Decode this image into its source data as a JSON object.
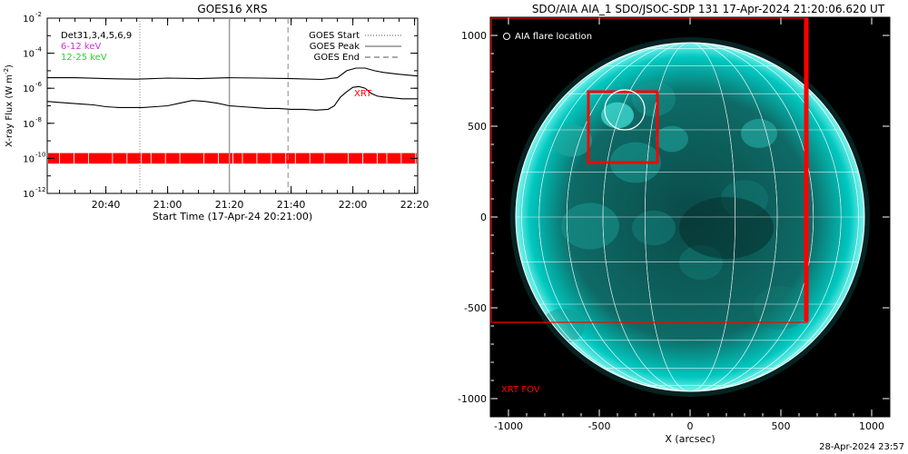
{
  "chart_data": [
    {
      "type": "line",
      "title": "GOES16 XRS",
      "xlabel": "Start Time (17-Apr-24 20:21:00)",
      "ylabel": "X-ray Flux (W m",
      "ylabel_sup": "-2",
      "ylabel_end": ")",
      "y_scale": "log",
      "ylim_exp": [
        -12,
        -2
      ],
      "y_ticks": [
        {
          "exp": -12,
          "label": "10",
          "sup": "-12"
        },
        {
          "exp": -10,
          "label": "10",
          "sup": "-10"
        },
        {
          "exp": -8,
          "label": "10",
          "sup": "-8"
        },
        {
          "exp": -6,
          "label": "10",
          "sup": "-6"
        },
        {
          "exp": -4,
          "label": "10",
          "sup": "-4"
        },
        {
          "exp": -2,
          "label": "10",
          "sup": "-2"
        }
      ],
      "x_range_min": [
        21,
        141
      ],
      "x_ticks": [
        {
          "min": 40,
          "label": "20:40"
        },
        {
          "min": 60,
          "label": "21:00"
        },
        {
          "min": 80,
          "label": "21:20"
        },
        {
          "min": 100,
          "label": "21:40"
        },
        {
          "min": 120,
          "label": "22:00"
        },
        {
          "min": 140,
          "label": "22:20"
        }
      ],
      "legend_top_left": [
        {
          "text": "Det31,3,4,5,6,9",
          "color": "#000000"
        },
        {
          "text": "6-12 keV",
          "color": "#cc33cc"
        },
        {
          "text": "12-25 keV",
          "color": "#33cc33"
        }
      ],
      "legend_top_right": [
        {
          "text": "GOES Start",
          "style": "dotted"
        },
        {
          "text": "GOES Peak",
          "style": "solid"
        },
        {
          "text": "GOES End",
          "style": "dashed"
        }
      ],
      "markers": {
        "goes_start_min": 51,
        "goes_peak_min": 80,
        "goes_end_min": 99
      },
      "annotation": {
        "text": "XRT",
        "color": "#ff0000"
      },
      "series": [
        {
          "name": "long",
          "color": "#000000",
          "x": [
            21,
            30,
            40,
            50,
            60,
            70,
            80,
            90,
            100,
            110,
            115,
            118,
            121,
            124,
            127,
            130,
            135,
            141
          ],
          "y_exp": [
            -5.4,
            -5.4,
            -5.45,
            -5.48,
            -5.42,
            -5.45,
            -5.4,
            -5.42,
            -5.45,
            -5.5,
            -5.4,
            -5.0,
            -4.85,
            -4.85,
            -5.0,
            -5.1,
            -5.2,
            -5.3
          ]
        },
        {
          "name": "short",
          "color": "#000000",
          "x": [
            21,
            24,
            28,
            32,
            36,
            40,
            44,
            48,
            52,
            56,
            60,
            64,
            68,
            72,
            76,
            80,
            84,
            88,
            92,
            96,
            100,
            104,
            108,
            112,
            114,
            116,
            118,
            120,
            122,
            124,
            126,
            128,
            130,
            133,
            136,
            141
          ],
          "y_exp": [
            -6.75,
            -6.8,
            -6.85,
            -6.9,
            -6.95,
            -7.05,
            -7.1,
            -7.1,
            -7.1,
            -7.05,
            -7.0,
            -6.85,
            -6.7,
            -6.75,
            -6.85,
            -7.0,
            -7.05,
            -7.1,
            -7.15,
            -7.15,
            -7.2,
            -7.2,
            -7.25,
            -7.2,
            -7.0,
            -6.5,
            -6.2,
            -5.95,
            -5.9,
            -6.0,
            -6.3,
            -6.45,
            -6.5,
            -6.55,
            -6.6,
            -6.6
          ]
        }
      ],
      "band": {
        "color": "#ff0000",
        "exp_low": -10.3,
        "exp_high": -9.7
      }
    },
    {
      "type": "heatmap",
      "title": "SDO/AIA AIA_1 SDO/JSOC-SDP 131 17-Apr-2024 21:20:06.620 UT",
      "xlabel": "X (arcsec)",
      "ylabel": "",
      "xlim": [
        -1100,
        1100
      ],
      "ylim": [
        -1100,
        1100
      ],
      "x_ticks": [
        -1000,
        -500,
        0,
        500,
        1000
      ],
      "y_ticks": [
        -1000,
        -500,
        0,
        500,
        1000
      ],
      "legend": "AIA flare location",
      "fov_label": "XRT FOV",
      "sun_radius_arcsec": 960,
      "xrt_fov_arcsec": {
        "x": [
          -1100,
          640
        ],
        "y": [
          -575,
          1100
        ]
      },
      "flare_box_arcsec": {
        "x": [
          -560,
          -180
        ],
        "y": [
          300,
          690
        ]
      },
      "flare_circle_arcsec": {
        "x": -360,
        "y": 590,
        "r": 110
      },
      "colors": {
        "sun": "#00c8c0",
        "background": "#000000",
        "fov": "#ff0000",
        "grid": "#ffffff"
      }
    }
  ],
  "footer": "28-Apr-2024 23:57"
}
